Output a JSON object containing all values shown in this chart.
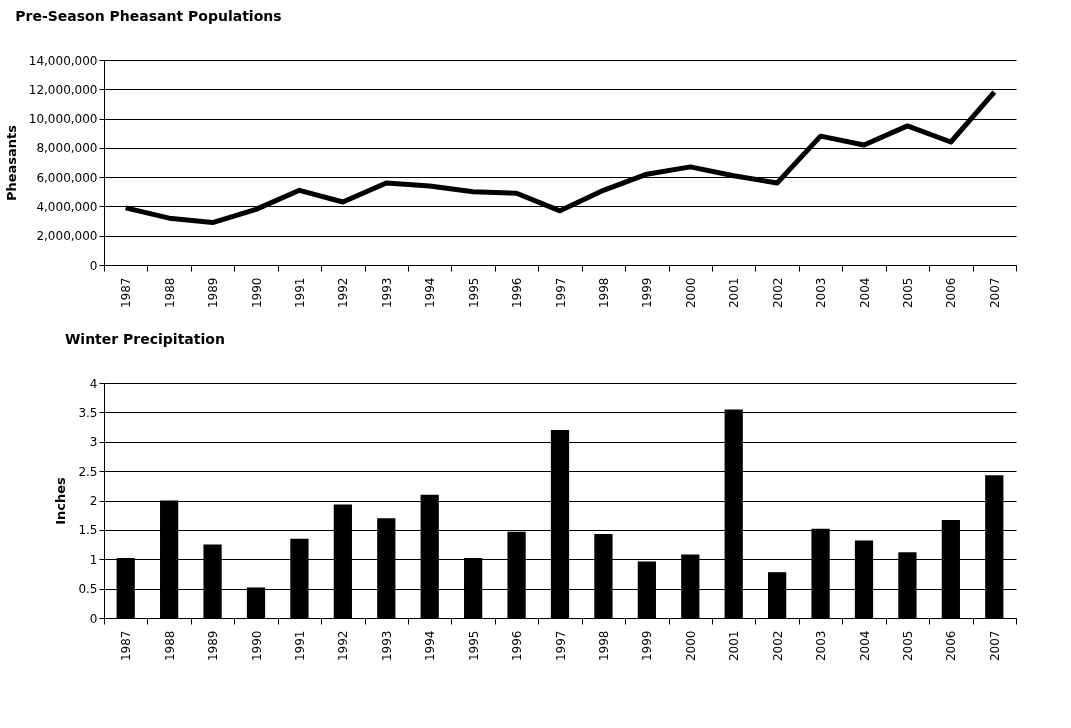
{
  "chart_data": [
    {
      "type": "line",
      "title": "Pre-Season Pheasant Populations",
      "ylabel": "Pheasants",
      "categories": [
        "1987",
        "1988",
        "1989",
        "1990",
        "1991",
        "1992",
        "1993",
        "1994",
        "1995",
        "1996",
        "1997",
        "1998",
        "1999",
        "2000",
        "2001",
        "2002",
        "2003",
        "2004",
        "2005",
        "2006",
        "2007"
      ],
      "series": [
        {
          "color": "#000000",
          "values": [
            3900000,
            3200000,
            2900000,
            3800000,
            5100000,
            4300000,
            5600000,
            5400000,
            5000000,
            4900000,
            3700000,
            5100000,
            6200000,
            6700000,
            6100000,
            5600000,
            8800000,
            8200000,
            9500000,
            8400000,
            11800000
          ]
        }
      ],
      "ylim": [
        0,
        14000000
      ],
      "yticks": [
        0,
        {
          "value": 2000000,
          "label": "2,000,000"
        },
        {
          "value": 4000000,
          "label": "4,000,000"
        },
        {
          "value": 6000000,
          "label": "6,000,000"
        },
        {
          "value": 8000000,
          "label": "8,000,000"
        },
        {
          "value": 10000000,
          "label": "10,000,000"
        },
        {
          "value": 12000000,
          "label": "12,000,000"
        },
        {
          "value": 14000000,
          "label": "14,000,000"
        }
      ],
      "grid": "y",
      "legend": false,
      "marker": "none",
      "line_style": "solid"
    },
    {
      "type": "bar",
      "title": "Winter Precipitation",
      "ylabel": "Inches",
      "categories": [
        "1987",
        "1988",
        "1989",
        "1990",
        "1991",
        "1992",
        "1993",
        "1994",
        "1995",
        "1996",
        "1997",
        "1998",
        "1999",
        "2000",
        "2001",
        "2002",
        "2003",
        "2004",
        "2005",
        "2006",
        "2007"
      ],
      "series": [
        {
          "color": "#000000",
          "values": [
            1.02,
            2.0,
            1.25,
            0.52,
            1.35,
            1.93,
            1.7,
            2.1,
            1.02,
            1.47,
            3.2,
            1.43,
            0.96,
            1.08,
            3.55,
            0.78,
            1.52,
            1.32,
            1.12,
            1.67,
            2.43
          ]
        }
      ],
      "ylim": [
        0,
        4
      ],
      "yticks": [
        0,
        0.5,
        1,
        1.5,
        2,
        2.5,
        3,
        3.5,
        4
      ],
      "grid": "y",
      "legend": false
    }
  ]
}
